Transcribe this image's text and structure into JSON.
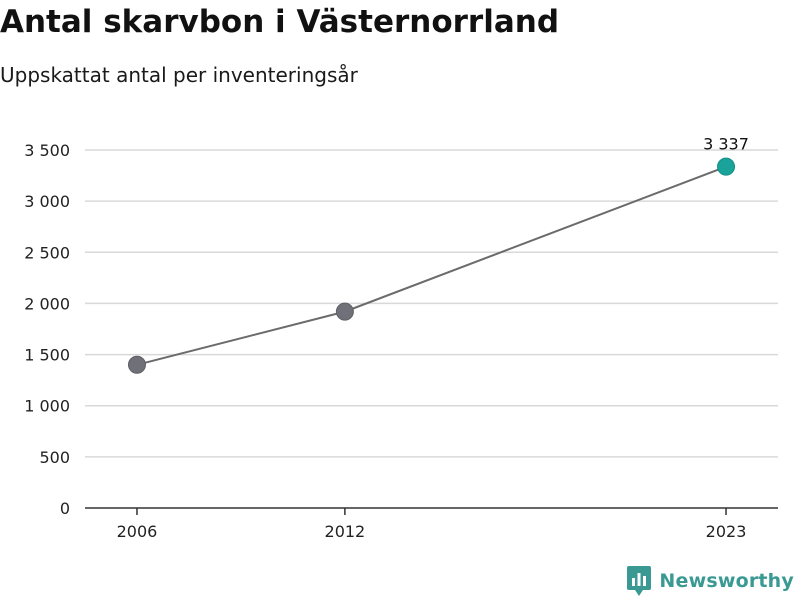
{
  "header": {
    "title": "Antal skarvbon i Västernorrland",
    "subtitle": "Uppskattat antal per inventeringsår"
  },
  "brand": {
    "name": "Newsworthy",
    "logo_icon": "newsworthy-chart-icon",
    "color": "#3a9a93"
  },
  "chart_data": {
    "type": "line",
    "title": "Antal skarvbon i Västernorrland",
    "subtitle": "Uppskattat antal per inventeringsår",
    "xlabel": "",
    "ylabel": "",
    "x": [
      2006,
      2012,
      2023
    ],
    "x_tick_labels": [
      "2006",
      "2012",
      "2023"
    ],
    "xlim": [
      2004.5,
      2024.5
    ],
    "series": [
      {
        "values": [
          1400,
          1920,
          3337
        ],
        "line_color": "#6b6b6b",
        "point_color": "#707078",
        "highlight_index": 2,
        "highlight_color": "#1aa39a"
      }
    ],
    "data_labels": [
      {
        "index": 2,
        "text": "3 337"
      }
    ],
    "ylim": [
      0,
      3500
    ],
    "y_ticks": [
      0,
      500,
      1000,
      1500,
      2000,
      2500,
      3000,
      3500
    ],
    "y_tick_labels": [
      "0",
      "500",
      "1 000",
      "1 500",
      "2 000",
      "2 500",
      "3 000",
      "3 500"
    ],
    "grid": true,
    "legend": "none",
    "gridline_color": "#d9d9d9",
    "axis_color": "#333333"
  }
}
